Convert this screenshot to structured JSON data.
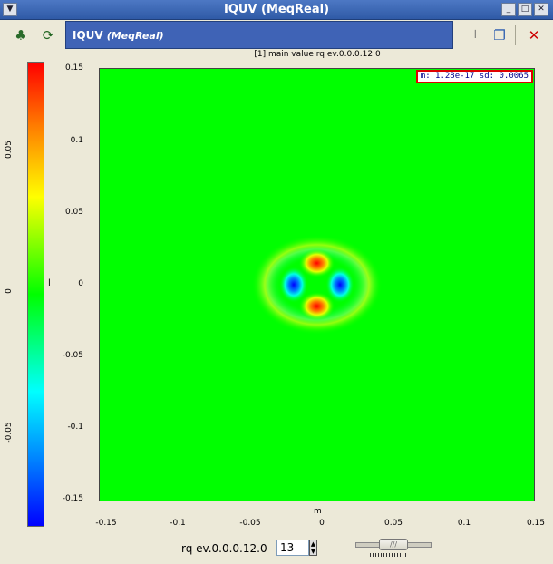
{
  "window": {
    "title": "IQUV (MeqReal)",
    "buttons": [
      "collapse",
      "minimize",
      "maximize",
      "close"
    ]
  },
  "toolbar": {
    "left_icons": [
      "nodes-icon",
      "refresh-icon"
    ],
    "plot_title_main": "IQUV",
    "plot_title_sub": "(MeqReal)",
    "right_icons": [
      "pin-icon",
      "float-window-icon",
      "close-icon"
    ]
  },
  "plot": {
    "subtitle": "[1] main value  rq ev.0.0.0.12.0",
    "stats": "m: 1.28e-17 sd: 0.0065",
    "y_axis_label": "l",
    "x_axis_label": "m",
    "y_ticks": [
      "0.15",
      "0.1",
      "0.05",
      "0",
      "-0.05",
      "-0.1",
      "-0.15"
    ],
    "x_ticks": [
      "-0.15",
      "-0.1",
      "-0.05",
      "0",
      "0.05",
      "0.1",
      "0.15"
    ],
    "colorbar_ticks": [
      "0.05",
      "0",
      "-0.05"
    ]
  },
  "chart_data": {
    "type": "heatmap",
    "title": "[1] main value  rq ev.0.0.0.12.0",
    "xlabel": "m",
    "ylabel": "l",
    "xlim": [
      -0.15,
      0.15
    ],
    "ylim": [
      -0.15,
      0.15
    ],
    "zlim": [
      -0.08,
      0.08
    ],
    "colormap": [
      "#0000ff",
      "#00ffff",
      "#00ff00",
      "#ffff00",
      "#ff0000"
    ],
    "stats": {
      "mean": "1.28e-17",
      "sd": "0.0065"
    },
    "features": [
      {
        "m": 0.0,
        "l": 0.015,
        "value": 0.08
      },
      {
        "m": 0.0,
        "l": -0.015,
        "value": 0.08
      },
      {
        "m": -0.016,
        "l": 0.0,
        "value": -0.08
      },
      {
        "m": 0.016,
        "l": 0.0,
        "value": -0.08
      }
    ]
  },
  "controls": {
    "request_label": "rq ev.0.0.0.12.0",
    "spin_value": "13"
  }
}
